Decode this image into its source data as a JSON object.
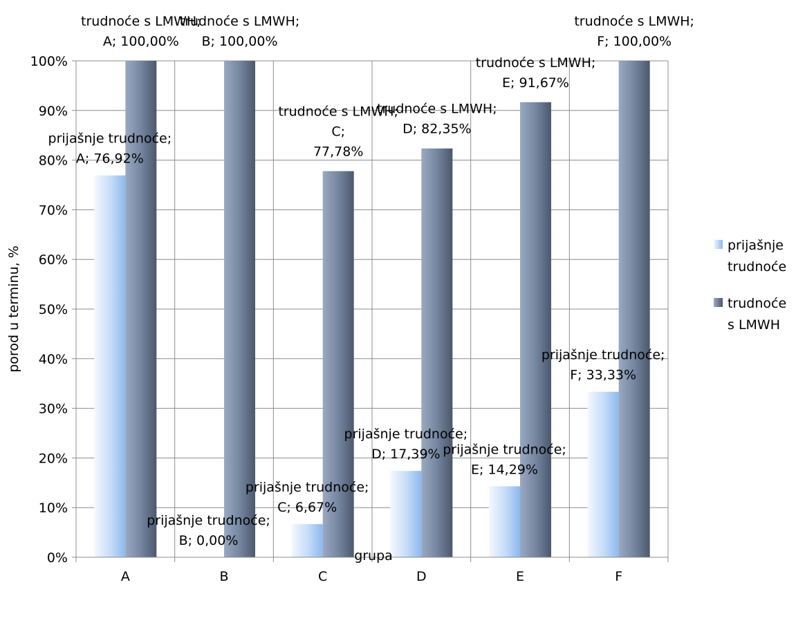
{
  "chart_data": {
    "type": "bar",
    "title": "",
    "xlabel": "grupa",
    "ylabel": "porod u terminu, %",
    "categories": [
      "A",
      "B",
      "C",
      "D",
      "E",
      "F"
    ],
    "ylim": [
      0,
      100
    ],
    "yticks": [
      "0%",
      "10%",
      "20%",
      "30%",
      "40%",
      "50%",
      "60%",
      "70%",
      "80%",
      "90%",
      "100%"
    ],
    "grid": "vertical and horizontal gridlines on",
    "legend_placement": "right",
    "series": [
      {
        "name": "prijašnje trudnoće",
        "color": "#8db8ee",
        "values": [
          76.92,
          0.0,
          6.67,
          17.39,
          14.29,
          33.33
        ],
        "data_labels": [
          [
            "prijašnje trudnoće;",
            "A; 76,92%"
          ],
          [
            "prijašnje trudnoće;",
            "B; 0,00%"
          ],
          [
            "prijašnje trudnoće;",
            "C; 6,67%"
          ],
          [
            "prijašnje trudnoće;",
            "D; 17,39%"
          ],
          [
            "prijašnje trudnoće;",
            "E; 14,29%"
          ],
          [
            "prijašnje trudnoće;",
            "F; 33,33%"
          ]
        ]
      },
      {
        "name": "trudnoće s LMWH",
        "color": "#5d6c85",
        "values": [
          100.0,
          100.0,
          77.78,
          82.35,
          91.67,
          100.0
        ],
        "data_labels": [
          [
            "trudnoće s LMWH;",
            "A; 100,00%"
          ],
          [
            "trudnoće s LMWH;",
            "B; 100,00%"
          ],
          [
            "trudnoće s LMWH;",
            "C;",
            "77,78%"
          ],
          [
            "trudnoće s LMWH;",
            "D; 82,35%"
          ],
          [
            "trudnoće s LMWH;",
            "E; 91,67%"
          ],
          [
            "trudnoće s LMWH;",
            "F; 100,00%"
          ]
        ]
      }
    ],
    "legend": {
      "items": [
        {
          "lines": [
            "prijašnje",
            "trudnoće"
          ]
        },
        {
          "lines": [
            "trudnoće",
            "s LMWH"
          ]
        }
      ]
    }
  }
}
